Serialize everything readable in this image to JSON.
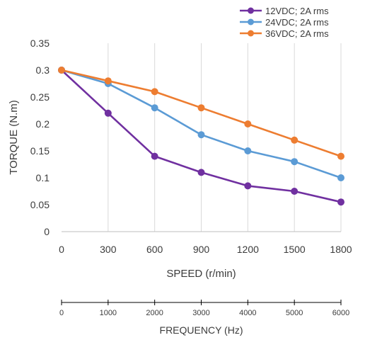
{
  "chart_data": {
    "type": "line",
    "x": [
      0,
      300,
      600,
      900,
      1200,
      1500,
      1800
    ],
    "xlabel": "SPEED (r/min)",
    "ylabel": "TORQUE (N.m)",
    "xlim": [
      0,
      1800
    ],
    "ylim": [
      0,
      0.35
    ],
    "x_tick_labels": [
      "0",
      "300",
      "600",
      "900",
      "1200",
      "1500",
      "1800"
    ],
    "y_tick_labels": [
      "0",
      "0.05",
      "0.1",
      "0.15",
      "0.2",
      "0.25",
      "0.3",
      "0.35"
    ],
    "y_ticks": [
      0,
      0.05,
      0.1,
      0.15,
      0.2,
      0.25,
      0.3,
      0.35
    ],
    "grid": "vertical",
    "legend_position": "top-right",
    "series": [
      {
        "name": "12VDC; 2A rms",
        "color": "#7030a0",
        "values": [
          0.3,
          0.22,
          0.14,
          0.11,
          0.085,
          0.075,
          0.055
        ]
      },
      {
        "name": "24VDC; 2A rms",
        "color": "#5b9bd5",
        "values": [
          0.3,
          0.275,
          0.23,
          0.18,
          0.15,
          0.13,
          0.1
        ]
      },
      {
        "name": "36VDC; 2A rms",
        "color": "#ed7d31",
        "values": [
          0.3,
          0.28,
          0.26,
          0.23,
          0.2,
          0.17,
          0.14
        ]
      }
    ],
    "secondary_axis": {
      "xlabel": "FREQUENCY (Hz)",
      "tick_labels": [
        "0",
        "1000",
        "2000",
        "3000",
        "4000",
        "5000",
        "6000"
      ]
    }
  }
}
